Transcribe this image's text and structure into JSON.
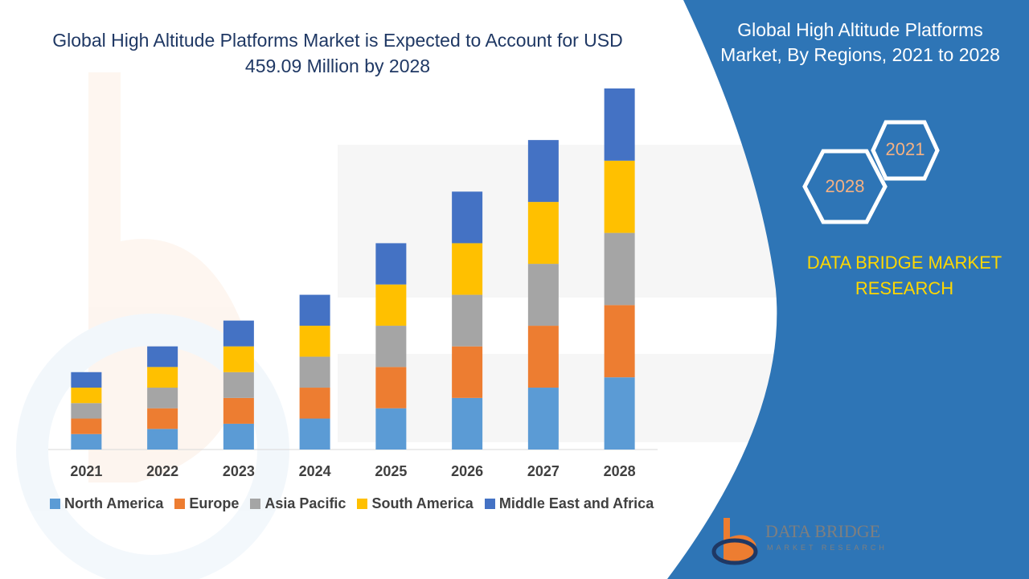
{
  "title": "Global High Altitude Platforms Market is Expected to Account for USD 459.09 Million by 2028",
  "panel": {
    "title": "Global High Altitude Platforms Market, By Regions, 2021 to 2028",
    "hex_left": "2028",
    "hex_right": "2021",
    "brand": "DATA BRIDGE MARKET RESEARCH",
    "logo_line1": "DATA BRIDGE",
    "logo_line2": "MARKET RESEARCH"
  },
  "colors": {
    "panel_blue": "#2e75b6",
    "brand_yellow": "#ffd700",
    "hex_text": "#f4b183"
  },
  "chart_data": {
    "type": "bar",
    "stacked": true,
    "categories": [
      "2021",
      "2022",
      "2023",
      "2024",
      "2025",
      "2026",
      "2027",
      "2028"
    ],
    "ylim": [
      0,
      7
    ],
    "grid": false,
    "legend_position": "bottom",
    "series": [
      {
        "name": "North America",
        "color": "#5b9bd5",
        "values": [
          0.3,
          0.4,
          0.5,
          0.6,
          0.8,
          1.0,
          1.2,
          1.4
        ]
      },
      {
        "name": "Europe",
        "color": "#ed7d31",
        "values": [
          0.3,
          0.4,
          0.5,
          0.6,
          0.8,
          1.0,
          1.2,
          1.4
        ]
      },
      {
        "name": "Asia Pacific",
        "color": "#a5a5a5",
        "values": [
          0.3,
          0.4,
          0.5,
          0.6,
          0.8,
          1.0,
          1.2,
          1.4
        ]
      },
      {
        "name": "South America",
        "color": "#ffc000",
        "values": [
          0.3,
          0.4,
          0.5,
          0.6,
          0.8,
          1.0,
          1.2,
          1.4
        ]
      },
      {
        "name": "Middle East and Africa",
        "color": "#4472c4",
        "values": [
          0.3,
          0.4,
          0.5,
          0.6,
          0.8,
          1.0,
          1.2,
          1.4
        ]
      }
    ]
  }
}
